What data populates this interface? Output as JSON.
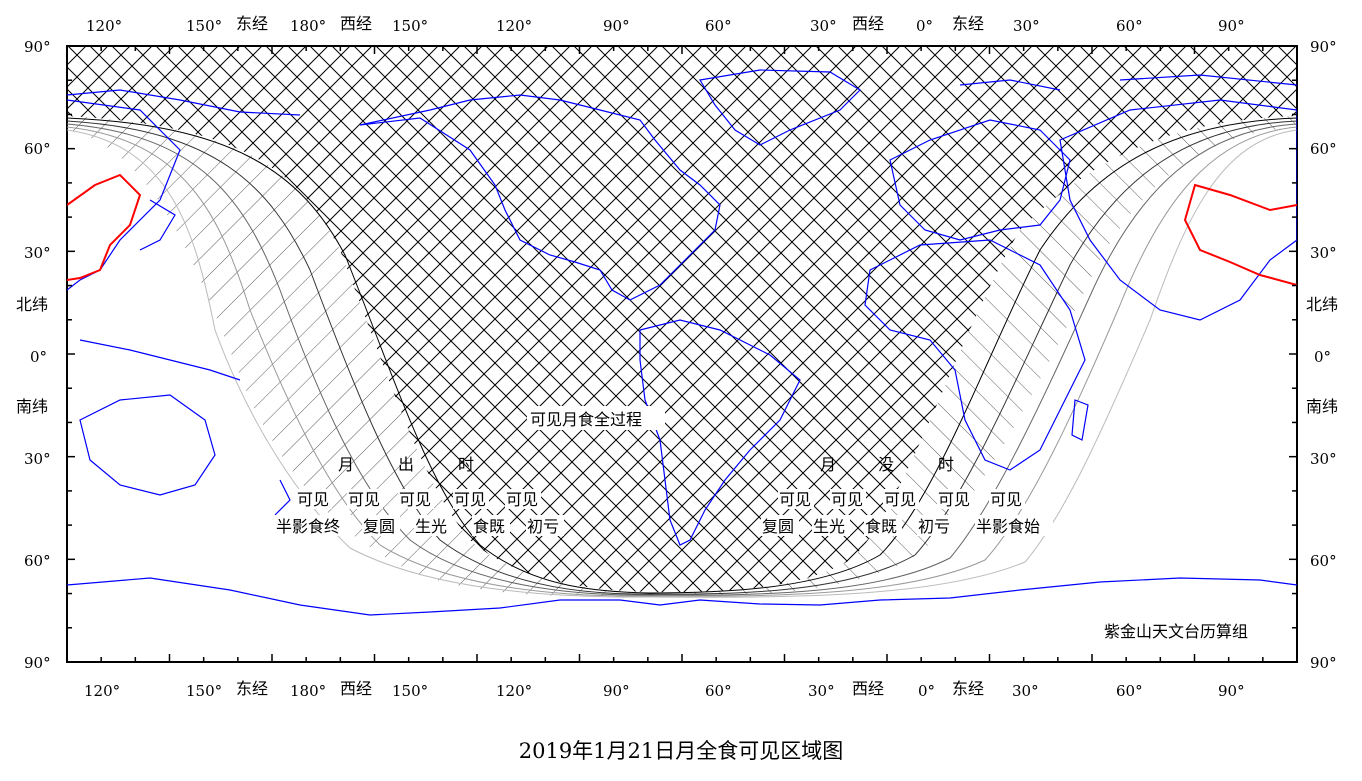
{
  "title": "2019年1月21日月全食可见区域图",
  "credit": "紫金山天文台历算组",
  "map": {
    "top_lon_labels": [
      "120°",
      "150°",
      "东经",
      "180°",
      "西经",
      "150°",
      "120°",
      "90°",
      "60°",
      "30°",
      "西经",
      "0°",
      "东经",
      "30°",
      "60°",
      "90°"
    ],
    "bottom_lon_labels": [
      "120°",
      "150°",
      "东经",
      "180°",
      "西经",
      "150°",
      "120°",
      "90°",
      "60°",
      "30°",
      "西经",
      "0°",
      "东经",
      "30°",
      "60°",
      "90°"
    ],
    "lat_labels": [
      "90°",
      "60°",
      "30°",
      "北纬",
      "0°",
      "南纬",
      "30°",
      "60°",
      "90°"
    ],
    "total_visible_label": "可见月食全过程",
    "moonrise": {
      "heading": [
        "月",
        "出",
        "时"
      ],
      "top_row": [
        "可见",
        "可见",
        "可见",
        "可见",
        "可见"
      ],
      "bottom_row": [
        "半影食终",
        "复圆",
        "生光",
        "食既",
        "初亏"
      ]
    },
    "moonset": {
      "heading": [
        "月",
        "没",
        "时"
      ],
      "top_row": [
        "可见",
        "可见",
        "可见",
        "可见",
        "可见"
      ],
      "bottom_row": [
        "复圆",
        "生光",
        "食既",
        "初亏",
        "半影食始"
      ]
    },
    "colors": {
      "coastline": "#0000ff",
      "china_border": "#ff0000",
      "hatch_dark": "#000000",
      "hatch_light": "#aaaaaa",
      "frame": "#000000"
    }
  }
}
